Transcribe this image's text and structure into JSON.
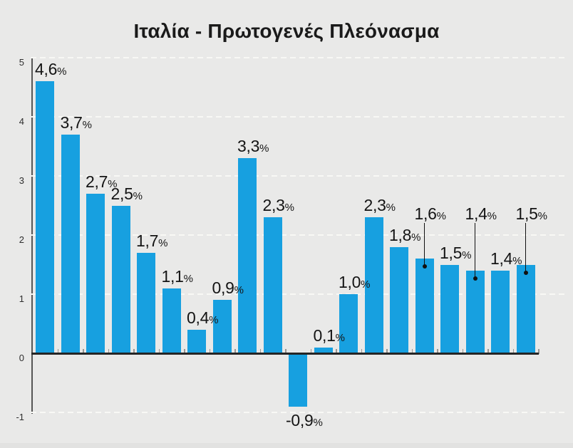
{
  "title": "Ιταλία - Πρωτογενές Πλεόνασμα",
  "chart_data": {
    "type": "bar",
    "title": "Ιταλία - Πρωτογενές Πλεόνασμα",
    "xlabel": "",
    "ylabel": "",
    "x_categories_visible": false,
    "values": [
      4.6,
      3.7,
      2.7,
      2.5,
      1.7,
      1.1,
      0.4,
      0.9,
      3.3,
      2.3,
      -0.9,
      0.1,
      1.0,
      2.3,
      1.8,
      1.6,
      1.5,
      1.4,
      1.4,
      1.5
    ],
    "bar_labels": [
      "4,6%",
      "3,7%",
      "2,7%",
      "2,5%",
      "1,7%",
      "1,1%",
      "0,4%",
      "0,9%",
      "3,3%",
      "2,3%",
      "-0,9%",
      "0,1%",
      "1,0%",
      "2,3%",
      "1,8%",
      "1,6%",
      "1,5%",
      "1,4%",
      "1,4%",
      "1,5%"
    ],
    "callout_indices": [
      15,
      17,
      19
    ],
    "ylim": [
      -1,
      5
    ],
    "ytick_values": [
      5,
      4,
      3,
      2,
      1,
      0,
      -1
    ],
    "ytick_labels": [
      "5",
      "4",
      "3",
      "2",
      "1",
      "0",
      "-1"
    ],
    "grid": "horizontal dashed lines at 5,4,3,2,1,-1; solid zero baseline",
    "legend": "none",
    "colors": {
      "bar": "#17a0e0",
      "background": "#e9e9e8",
      "text": "#141414",
      "axis": "#565656",
      "baseline": "#252525",
      "gridline": "#f8f8f5"
    }
  }
}
